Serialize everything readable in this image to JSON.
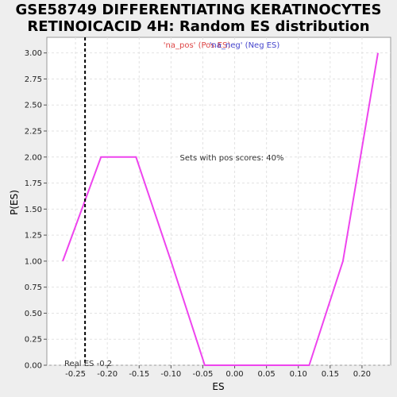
{
  "title": {
    "line1": "GSE58749 DIFFERENTIATING KERATINOCYTES",
    "line2": "RETINOICACID 4H: Random ES distribution"
  },
  "chart_data": {
    "type": "line",
    "xlabel": "ES",
    "ylabel": "P(ES)",
    "xlim": [
      -0.295,
      0.245
    ],
    "ylim": [
      0,
      3.15
    ],
    "xticks": [
      -0.25,
      -0.2,
      -0.15,
      -0.1,
      -0.05,
      0.0,
      0.05,
      0.1,
      0.15,
      0.2
    ],
    "xtick_labels": [
      "-0.25",
      "-0.20",
      "-0.15",
      "-0.10",
      "-0.05",
      "0.00",
      "0.05",
      "0.10",
      "0.15",
      "0.20"
    ],
    "yticks": [
      0,
      0.25,
      0.5,
      0.75,
      1.0,
      1.25,
      1.5,
      1.75,
      2.0,
      2.25,
      2.5,
      2.75,
      3.0
    ],
    "ytick_labels": [
      "0.00",
      "0.25",
      "0.50",
      "0.75",
      "1.00",
      "1.25",
      "1.50",
      "1.75",
      "2.00",
      "2.25",
      "2.50",
      "2.75",
      "3.00"
    ],
    "grid": true,
    "series": [
      {
        "color": "#ee44ee",
        "x": [
          -0.27,
          -0.21,
          -0.155,
          -0.1,
          -0.047,
          0.0,
          0.06,
          0.117,
          0.17,
          0.225
        ],
        "y": [
          1.0,
          2.0,
          2.0,
          1.0,
          0.0,
          0.0,
          0.0,
          0.0,
          1.0,
          3.0
        ]
      }
    ],
    "real_es": {
      "value": -0.235,
      "label": "Real ES -0.2"
    },
    "legend": {
      "placement": "top-center",
      "pos_label": "'na_pos' (Pos ES)",
      "neg_label": "'na_neg' (Neg ES)",
      "pos_color": "#dd4444",
      "neg_color": "#4444cc"
    },
    "annotation": "Sets with pos scores: 40%"
  }
}
